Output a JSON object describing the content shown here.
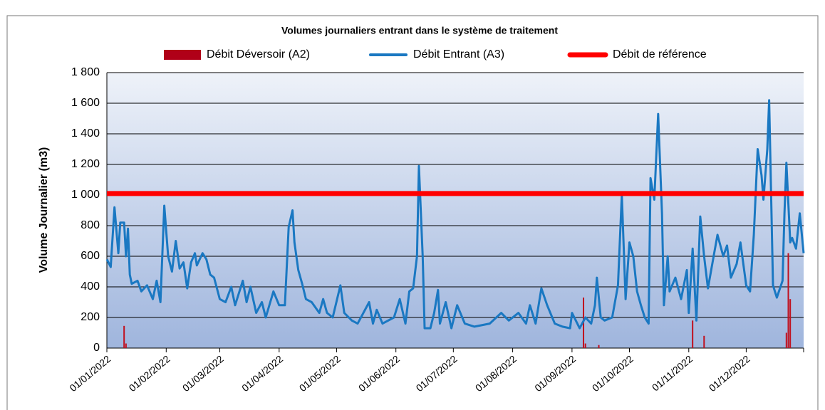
{
  "chart_data": {
    "type": "line",
    "title": "Volumes journaliers entrant dans le système de traitement",
    "y_label": "Volume Journalier (m3)",
    "xlim": [
      "01/01/2022",
      "31/12/2022"
    ],
    "xticks": [
      "01/01/2022",
      "01/02/2022",
      "01/03/2022",
      "01/04/2022",
      "01/05/2022",
      "01/06/2022",
      "01/07/2022",
      "01/08/2022",
      "01/09/2022",
      "01/10/2022",
      "01/11/2022",
      "01/12/2022"
    ],
    "ylim": [
      0,
      1800
    ],
    "yticks": [
      0,
      200,
      400,
      600,
      800,
      {
        "value": 1000,
        "label": "1 000"
      },
      {
        "value": 1200,
        "label": "1 200"
      },
      {
        "value": 1400,
        "label": "1 400"
      },
      {
        "value": 1600,
        "label": "1 600"
      },
      {
        "value": 1800,
        "label": "1 800"
      }
    ],
    "grid": true,
    "legend": "top",
    "series": [
      {
        "name": "Débit Déversoir (A2)",
        "type": "bar",
        "color": "#c0101e",
        "x": [
          "10/01/2022",
          "11/01/2022",
          "07/09/2022",
          "08/09/2022",
          "15/09/2022",
          "03/11/2022",
          "09/11/2022",
          "22/12/2022",
          "23/12/2022",
          "24/12/2022"
        ],
        "values": [
          145,
          30,
          330,
          30,
          20,
          180,
          80,
          100,
          620,
          320
        ]
      },
      {
        "name": "Débit Entrant (A3)",
        "type": "line",
        "color": "#1a78c2",
        "x": [
          "01/01/2022",
          "03/01/2022",
          "05/01/2022",
          "07/01/2022",
          "08/01/2022",
          "10/01/2022",
          "11/01/2022",
          "12/01/2022",
          "13/01/2022",
          "14/01/2022",
          "17/01/2022",
          "19/01/2022",
          "22/01/2022",
          "25/01/2022",
          "27/01/2022",
          "29/01/2022",
          "31/01/2022",
          "02/02/2022",
          "04/02/2022",
          "06/02/2022",
          "08/02/2022",
          "10/02/2022",
          "12/02/2022",
          "14/02/2022",
          "16/02/2022",
          "17/02/2022",
          "20/02/2022",
          "22/02/2022",
          "24/02/2022",
          "26/02/2022",
          "01/03/2022",
          "04/03/2022",
          "07/03/2022",
          "09/03/2022",
          "13/03/2022",
          "15/03/2022",
          "17/03/2022",
          "20/03/2022",
          "23/03/2022",
          "25/03/2022",
          "29/03/2022",
          "01/04/2022",
          "04/04/2022",
          "06/04/2022",
          "08/04/2022",
          "09/04/2022",
          "11/04/2022",
          "13/04/2022",
          "15/04/2022",
          "18/04/2022",
          "22/04/2022",
          "24/04/2022",
          "26/04/2022",
          "29/04/2022",
          "03/05/2022",
          "05/05/2022",
          "09/05/2022",
          "12/05/2022",
          "18/05/2022",
          "20/05/2022",
          "22/05/2022",
          "25/05/2022",
          "31/05/2022",
          "03/06/2022",
          "06/06/2022",
          "08/06/2022",
          "10/06/2022",
          "12/06/2022",
          "13/06/2022",
          "15/06/2022",
          "16/06/2022",
          "19/06/2022",
          "21/06/2022",
          "23/06/2022",
          "24/06/2022",
          "27/06/2022",
          "30/06/2022",
          "03/07/2022",
          "07/07/2022",
          "12/07/2022",
          "20/07/2022",
          "26/07/2022",
          "30/07/2022",
          "04/08/2022",
          "08/08/2022",
          "10/08/2022",
          "13/08/2022",
          "16/08/2022",
          "19/08/2022",
          "23/08/2022",
          "27/08/2022",
          "31/08/2022",
          "01/09/2022",
          "05/09/2022",
          "08/09/2022",
          "11/09/2022",
          "13/09/2022",
          "14/09/2022",
          "16/09/2022",
          "18/09/2022",
          "22/09/2022",
          "25/09/2022",
          "27/09/2022",
          "29/09/2022",
          "01/10/2022",
          "03/10/2022",
          "05/10/2022",
          "07/10/2022",
          "09/10/2022",
          "11/10/2022",
          "12/10/2022",
          "14/10/2022",
          "16/10/2022",
          "18/10/2022",
          "19/10/2022",
          "21/10/2022",
          "22/10/2022",
          "25/10/2022",
          "28/10/2022",
          "31/10/2022",
          "01/11/2022",
          "03/11/2022",
          "05/11/2022",
          "07/11/2022",
          "09/11/2022",
          "11/11/2022",
          "14/11/2022",
          "16/11/2022",
          "19/11/2022",
          "21/11/2022",
          "23/11/2022",
          "26/11/2022",
          "28/11/2022",
          "01/12/2022",
          "03/12/2022",
          "05/12/2022",
          "07/12/2022",
          "09/12/2022",
          "10/12/2022",
          "12/12/2022",
          "13/12/2022",
          "15/12/2022",
          "17/12/2022",
          "20/12/2022",
          "21/12/2022",
          "22/12/2022",
          "24/12/2022",
          "25/12/2022",
          "27/12/2022",
          "29/12/2022",
          "31/12/2022"
        ],
        "values": [
          580,
          530,
          920,
          620,
          820,
          820,
          600,
          780,
          480,
          420,
          440,
          370,
          410,
          320,
          440,
          300,
          930,
          600,
          500,
          700,
          520,
          560,
          390,
          560,
          620,
          540,
          620,
          580,
          480,
          460,
          320,
          300,
          400,
          280,
          440,
          300,
          400,
          230,
          300,
          200,
          370,
          280,
          280,
          790,
          900,
          690,
          510,
          420,
          320,
          300,
          230,
          320,
          230,
          200,
          410,
          230,
          180,
          160,
          300,
          160,
          250,
          160,
          200,
          320,
          160,
          370,
          390,
          600,
          1190,
          600,
          130,
          130,
          230,
          380,
          160,
          300,
          130,
          280,
          160,
          140,
          160,
          230,
          180,
          230,
          160,
          280,
          160,
          390,
          280,
          160,
          140,
          130,
          230,
          130,
          200,
          160,
          280,
          460,
          200,
          180,
          200,
          410,
          1000,
          320,
          690,
          600,
          370,
          280,
          200,
          160,
          1110,
          970,
          1530,
          880,
          280,
          600,
          370,
          460,
          320,
          510,
          230,
          650,
          180,
          860,
          600,
          390,
          600,
          740,
          600,
          670,
          460,
          550,
          690,
          410,
          370,
          740,
          1300,
          1130,
          970,
          1300,
          1620,
          410,
          330,
          440,
          880,
          1210,
          690,
          720,
          650,
          880,
          620
        ]
      },
      {
        "name": "Débit de référence",
        "type": "line",
        "color": "#ff0000",
        "x": [
          "01/01/2022",
          "31/12/2022"
        ],
        "values": [
          1010,
          1010
        ]
      }
    ]
  }
}
